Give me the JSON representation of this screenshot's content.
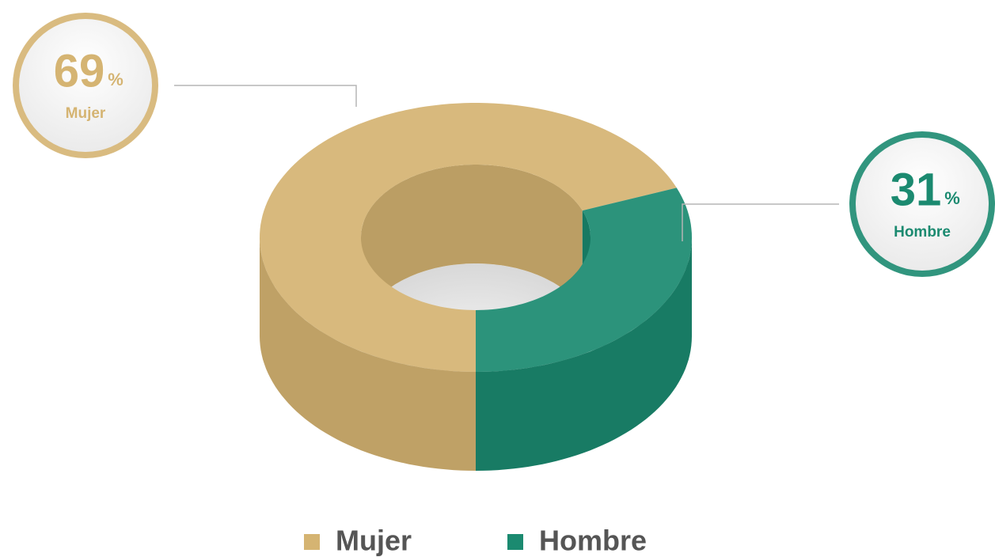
{
  "chart_data": {
    "type": "pie",
    "donut": true,
    "categories": [
      "Mujer",
      "Hombre"
    ],
    "values": [
      69,
      31
    ],
    "colors": [
      "#d5b472",
      "#1b8a70"
    ],
    "unit": "%",
    "legend": "bottom"
  }
}
